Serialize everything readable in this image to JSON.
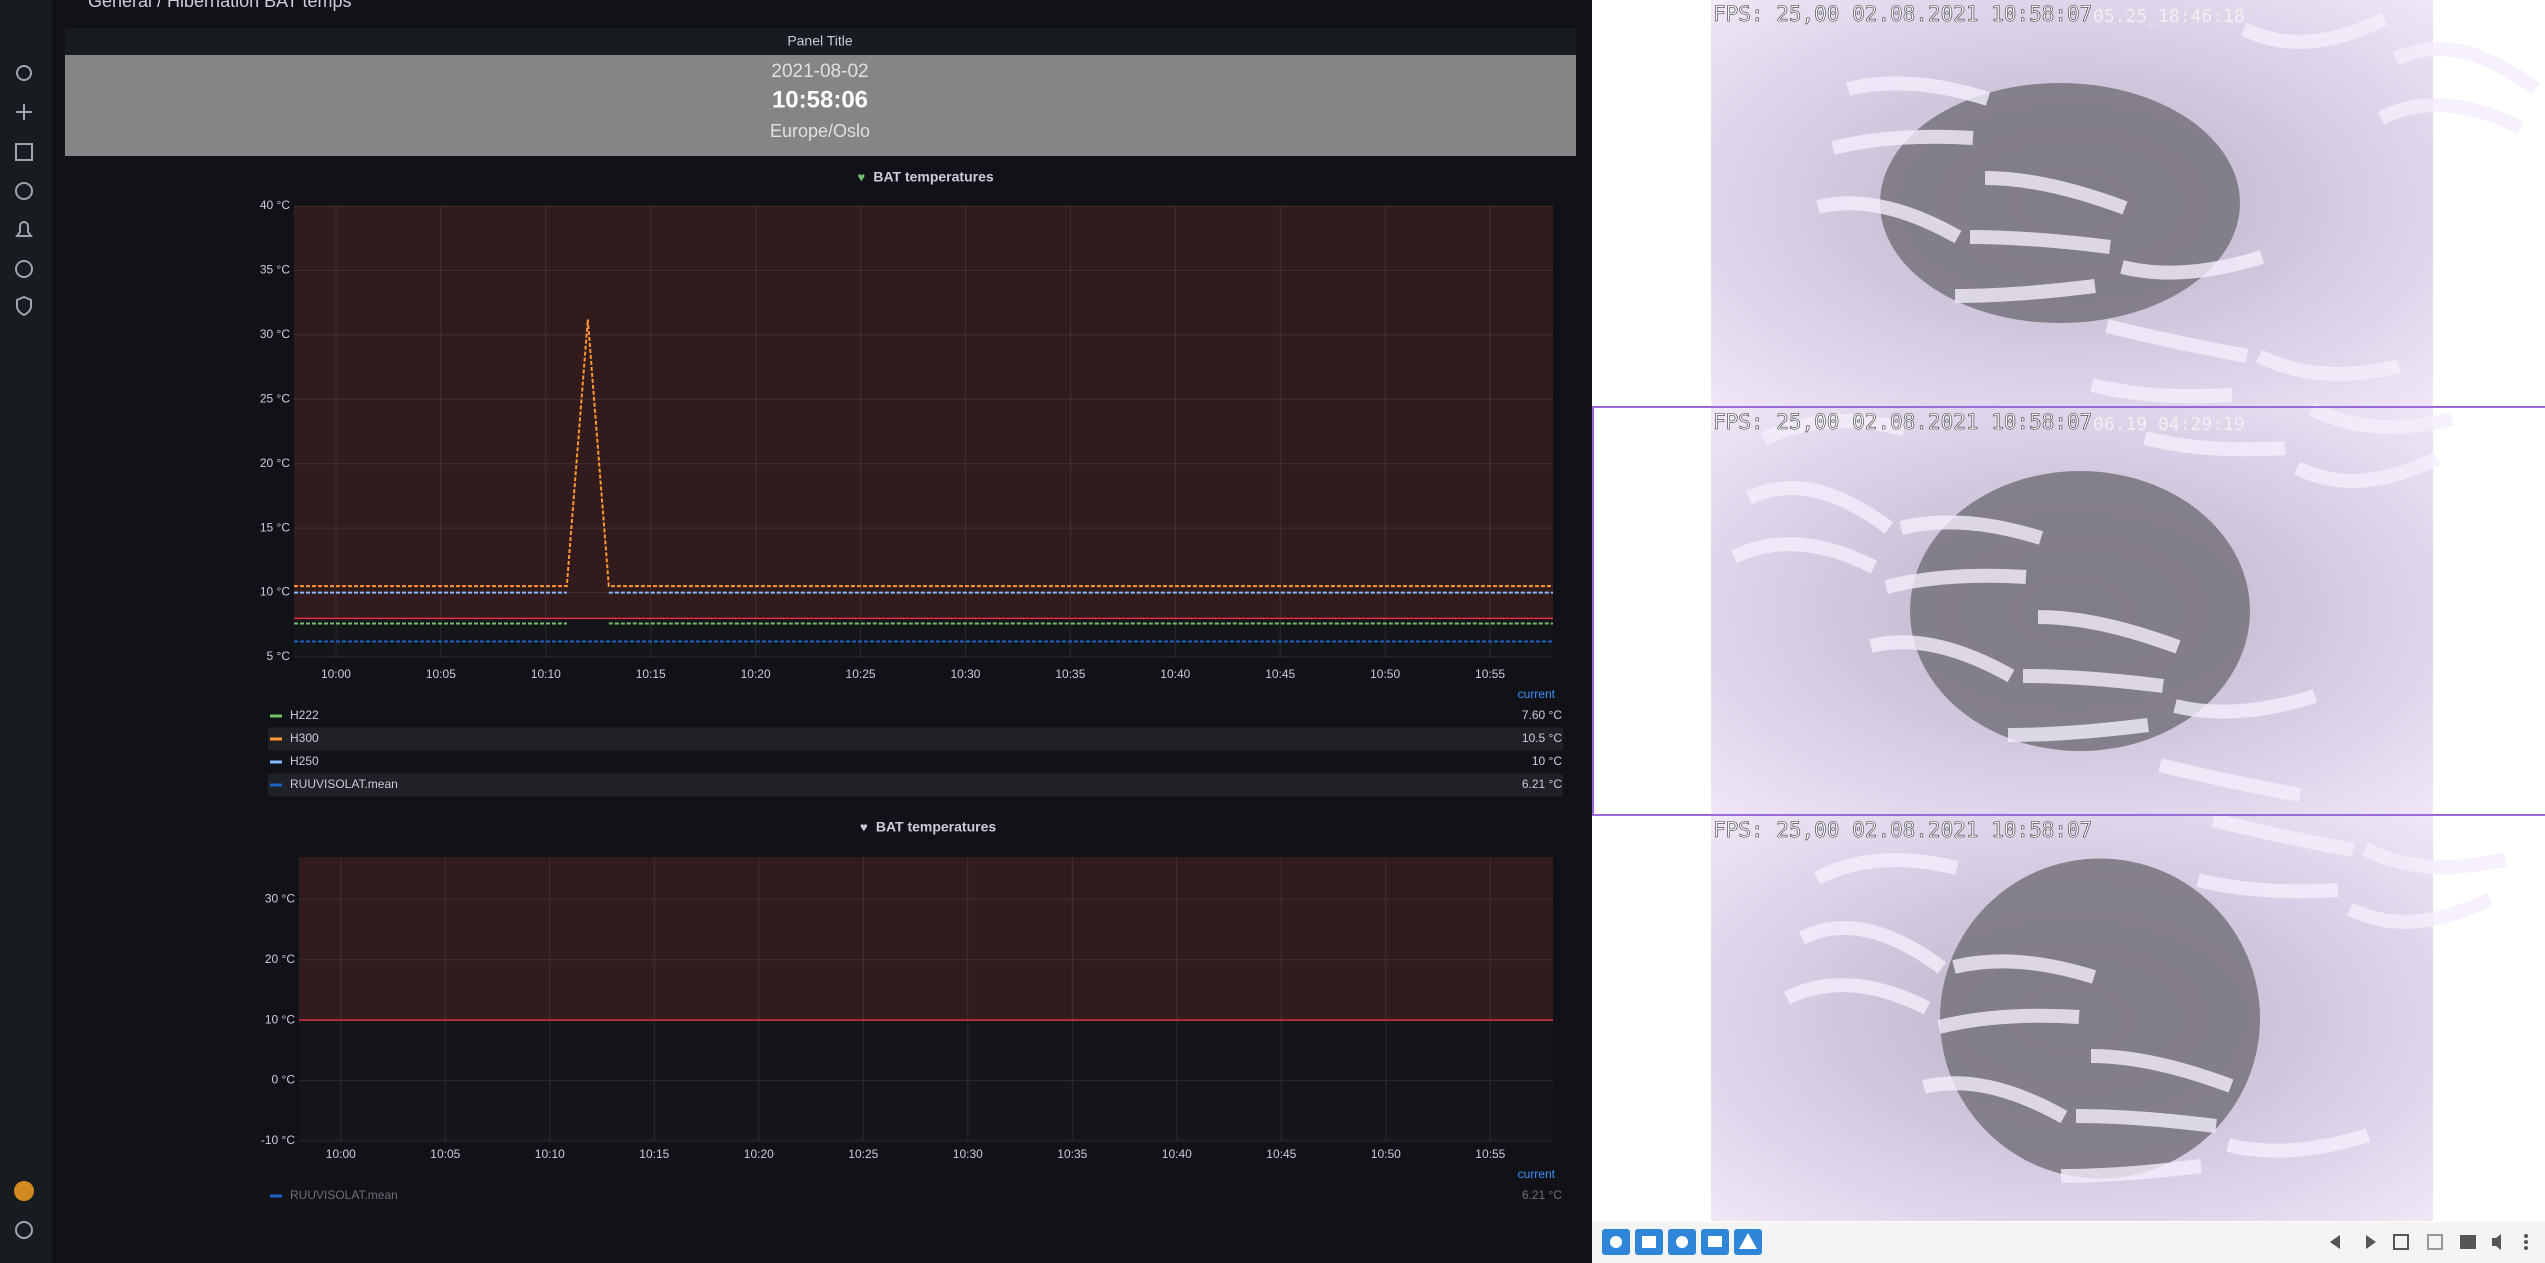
{
  "breadcrumb": "General / Hibernation BAT temps",
  "clock": {
    "title": "Panel Title",
    "date": "2021-08-02",
    "time": "10:58:06",
    "zone": "Europe/Oslo"
  },
  "chart_data": [
    {
      "type": "line",
      "title": "BAT temperatures",
      "legend_header": "current",
      "grid": true,
      "threshold": 8,
      "x": [
        "09:58",
        "10:00",
        "10:05",
        "10:10",
        "10:11",
        "10:12",
        "10:13",
        "10:15",
        "10:20",
        "10:25",
        "10:30",
        "10:35",
        "10:40",
        "10:45",
        "10:50",
        "10:55",
        "10:58"
      ],
      "xlim": [
        "09:58",
        "10:58"
      ],
      "xticks": [
        "10:00",
        "10:05",
        "10:10",
        "10:15",
        "10:20",
        "10:25",
        "10:30",
        "10:35",
        "10:40",
        "10:45",
        "10:50",
        "10:55"
      ],
      "ylim": [
        5,
        40
      ],
      "yticks": [
        {
          "value": 5,
          "label": "5 °C"
        },
        {
          "value": 10,
          "label": "10 °C"
        },
        {
          "value": 15,
          "label": "15 °C"
        },
        {
          "value": 20,
          "label": "20 °C"
        },
        {
          "value": 25,
          "label": "25 °C"
        },
        {
          "value": 30,
          "label": "30 °C"
        },
        {
          "value": 35,
          "label": "35 °C"
        },
        {
          "value": 40,
          "label": "40 °C"
        }
      ],
      "series": [
        {
          "name": "H222",
          "color": "#73bf69",
          "current": "7.60 °C",
          "values": [
            7.6,
            7.6,
            7.6,
            7.6,
            7.6,
            null,
            7.6,
            7.6,
            7.6,
            7.6,
            7.6,
            7.6,
            7.6,
            7.6,
            7.6,
            7.6,
            7.6
          ]
        },
        {
          "name": "H300",
          "color": "#ff9830",
          "current": "10.5 °C",
          "values": [
            10.5,
            10.5,
            10.5,
            10.5,
            10.5,
            31.2,
            10.5,
            10.5,
            10.5,
            10.5,
            10.5,
            10.5,
            10.5,
            10.5,
            10.5,
            10.5,
            10.5
          ]
        },
        {
          "name": "H250",
          "color": "#8ab8ff",
          "current": "10 °C",
          "values": [
            10,
            10,
            10,
            10,
            10,
            null,
            10,
            10,
            10,
            10,
            10,
            10,
            10,
            10,
            10,
            10,
            10
          ]
        },
        {
          "name": "RUUVISOLAT.mean",
          "color": "#1f60c4",
          "current": "6.21 °C",
          "values": [
            6.2,
            6.2,
            6.2,
            6.2,
            6.2,
            6.2,
            6.2,
            6.2,
            6.2,
            6.2,
            6.2,
            6.2,
            6.2,
            6.2,
            6.2,
            6.2,
            6.2
          ]
        }
      ]
    },
    {
      "type": "line",
      "title": "BAT temperatures",
      "legend_header": "current",
      "grid": true,
      "threshold": 10,
      "xlim": [
        "09:58",
        "10:58"
      ],
      "xticks": [
        "10:00",
        "10:05",
        "10:10",
        "10:15",
        "10:20",
        "10:25",
        "10:30",
        "10:35",
        "10:40",
        "10:45",
        "10:50",
        "10:55"
      ],
      "ylim": [
        -10,
        37
      ],
      "yticks": [
        {
          "value": -10,
          "label": "-10 °C"
        },
        {
          "value": 0,
          "label": "0 °C"
        },
        {
          "value": 10,
          "label": "10 °C"
        },
        {
          "value": 20,
          "label": "20 °C"
        },
        {
          "value": 30,
          "label": "30 °C"
        }
      ],
      "series": [
        {
          "name": "RUUVISOLAT.mean",
          "color": "#1f60c4",
          "current": "6.21 °C",
          "hidden": true
        }
      ]
    }
  ],
  "cameras": [
    {
      "overlay": "FPS: 25,00 02.08.2021 10:58:07",
      "stamp": "05.25_18:46:18"
    },
    {
      "overlay": "FPS: 25,00 02.08.2021 10:58:07",
      "stamp": "06.19_04:29:19"
    },
    {
      "overlay": "FPS: 25,00 02.08.2021 10:58:07"
    }
  ]
}
